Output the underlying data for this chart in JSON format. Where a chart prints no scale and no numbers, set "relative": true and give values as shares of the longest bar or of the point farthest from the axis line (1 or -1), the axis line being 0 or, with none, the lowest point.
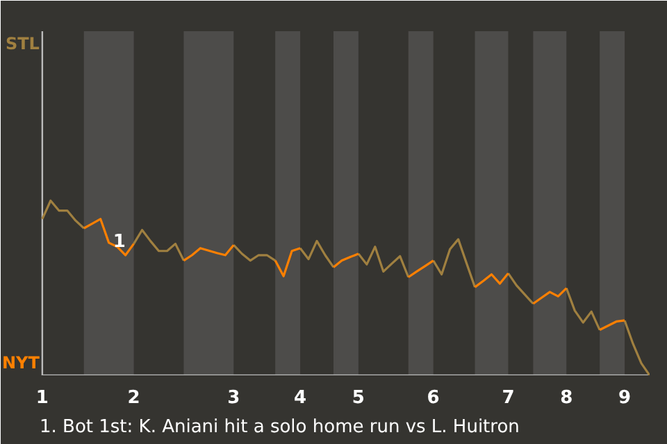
{
  "chart_data": {
    "type": "line",
    "relative": true,
    "categories": [
      "1",
      null,
      null,
      null,
      null,
      null,
      null,
      null,
      null,
      null,
      null,
      "2",
      null,
      null,
      null,
      null,
      null,
      null,
      null,
      null,
      null,
      null,
      null,
      "3",
      null,
      null,
      null,
      null,
      null,
      null,
      null,
      "4",
      null,
      null,
      null,
      null,
      null,
      null,
      "5",
      null,
      null,
      null,
      null,
      null,
      null,
      null,
      null,
      "6",
      null,
      null,
      null,
      null,
      null,
      null,
      null,
      null,
      "7",
      null,
      null,
      null,
      null,
      null,
      null,
      "8",
      null,
      null,
      null,
      null,
      null,
      null,
      "9",
      null,
      null,
      null
    ],
    "series": [
      {
        "name": "STL",
        "color": "#a08040",
        "values": [
          0.895,
          1,
          0.943,
          0.943,
          0.886,
          0.842,
          null,
          null,
          null,
          null,
          null,
          0.753,
          0.832,
          0.769,
          0.712,
          0.712,
          0.753,
          0.657,
          null,
          null,
          null,
          null,
          null,
          0.746,
          0.696,
          0.657,
          0.688,
          0.688,
          0.657,
          null,
          null,
          0.728,
          0.665,
          0.769,
          0.688,
          0.619,
          null,
          null,
          0.696,
          0.635,
          0.736,
          0.594,
          0.639,
          0.682,
          0.562,
          null,
          null,
          0.657,
          0.578,
          0.722,
          0.779,
          0.641,
          0.505,
          null,
          null,
          null,
          0.584,
          0.515,
          0.462,
          0.41,
          null,
          null,
          null,
          0.499,
          0.371,
          0.302,
          0.365,
          0.26,
          null,
          null,
          0.314,
          0.181,
          0.069,
          0
        ]
      },
      {
        "name": "NYT",
        "color": "#ff8000",
        "values": [
          null,
          null,
          null,
          null,
          null,
          0.842,
          0.868,
          0.895,
          0.759,
          0.736,
          0.688,
          0.753,
          null,
          null,
          null,
          null,
          null,
          0.657,
          0.688,
          0.728,
          0.714,
          0.7,
          0.688,
          0.746,
          null,
          null,
          null,
          null,
          0.657,
          0.568,
          0.712,
          0.728,
          null,
          null,
          null,
          0.619,
          0.657,
          0.677,
          0.696,
          null,
          null,
          null,
          null,
          null,
          0.562,
          0.594,
          0.625,
          0.657,
          null,
          null,
          null,
          null,
          0.505,
          0.54,
          0.578,
          0.525,
          0.584,
          null,
          null,
          0.41,
          0.444,
          0.477,
          0.452,
          0.499,
          null,
          null,
          null,
          0.26,
          0.284,
          0.308,
          0.314,
          null,
          null,
          null
        ]
      }
    ],
    "annotations": [
      {
        "text": "1",
        "y": 0.759
      },
      "1. Bot 1st: K. Aniani hit a solo home run vs L. Huitron"
    ]
  }
}
